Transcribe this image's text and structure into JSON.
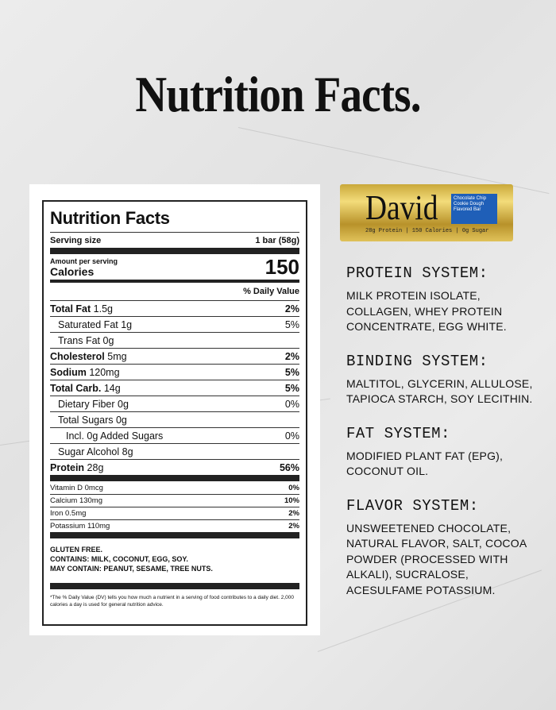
{
  "page_title": "Nutrition Facts.",
  "label": {
    "title": "Nutrition Facts",
    "serving_size_label": "Serving size",
    "serving_size_value": "1 bar (58g)",
    "amount_per_serving": "Amount per serving",
    "calories_label": "Calories",
    "calories_value": "150",
    "dv_header": "% Daily Value",
    "rows": [
      {
        "label": "Total Fat",
        "amount": "1.5g",
        "dv": "2%",
        "bold": true,
        "indent": 0
      },
      {
        "label": "Saturated Fat",
        "amount": "1g",
        "dv": "5%",
        "bold": false,
        "indent": 1
      },
      {
        "label": "Trans Fat",
        "amount": "0g",
        "dv": "",
        "bold": false,
        "indent": 1
      },
      {
        "label": "Cholesterol",
        "amount": "5mg",
        "dv": "2%",
        "bold": true,
        "indent": 0
      },
      {
        "label": "Sodium",
        "amount": "120mg",
        "dv": "5%",
        "bold": true,
        "indent": 0
      },
      {
        "label": "Total Carb.",
        "amount": "14g",
        "dv": "5%",
        "bold": true,
        "indent": 0
      },
      {
        "label": "Dietary Fiber",
        "amount": "0g",
        "dv": "0%",
        "bold": false,
        "indent": 1
      },
      {
        "label": "Total Sugars",
        "amount": "0g",
        "dv": "",
        "bold": false,
        "indent": 1
      },
      {
        "label": "Incl. 0g Added Sugars",
        "amount": "",
        "dv": "0%",
        "bold": false,
        "indent": 2
      },
      {
        "label": "Sugar Alcohol",
        "amount": "8g",
        "dv": "",
        "bold": false,
        "indent": 1
      },
      {
        "label": "Protein",
        "amount": "28g",
        "dv": "56%",
        "bold": true,
        "indent": 0
      }
    ],
    "micros": [
      {
        "label": "Vitamin D 0mcg",
        "dv": "0%"
      },
      {
        "label": "Calcium 130mg",
        "dv": "10%"
      },
      {
        "label": "Iron 0.5mg",
        "dv": "2%"
      },
      {
        "label": "Potassium 110mg",
        "dv": "2%"
      }
    ],
    "allergens": [
      "GLUTEN FREE.",
      "CONTAINS: MILK, COCONUT, EGG, SOY.",
      "MAY CONTAIN: PEANUT, SESAME, TREE NUTS."
    ],
    "footnote": "*The % Daily Value (DV) tells you how much a nutrient in a serving of food contributes to a daily diet. 2,000 calories a day is used for general nutrition advice."
  },
  "product": {
    "brand": "David",
    "flavor": "Chocolate Chip Cookie Dough Flavored Bar",
    "stats": "28g Protein | 150 Calories | 0g Sugar",
    "colors": {
      "wrapper": "#d4b24a",
      "flavor_box": "#1f5fb8"
    }
  },
  "systems": [
    {
      "title": "PROTEIN SYSTEM:",
      "text": "MILK PROTEIN ISOLATE, COLLAGEN, WHEY PROTEIN CONCENTRATE, EGG WHITE."
    },
    {
      "title": "BINDING SYSTEM:",
      "text": "MALTITOL, GLYCERIN, ALLULOSE, TAPIOCA STARCH, SOY LECITHIN."
    },
    {
      "title": "FAT SYSTEM:",
      "text": "MODIFIED PLANT FAT (EPG), COCONUT OIL."
    },
    {
      "title": "FLAVOR SYSTEM:",
      "text": "UNSWEETENED CHOCOLATE, NATURAL FLAVOR, SALT, COCOA POWDER (PROCESSED WITH ALKALI), SUCRALOSE, ACESULFAME POTASSIUM."
    }
  ]
}
